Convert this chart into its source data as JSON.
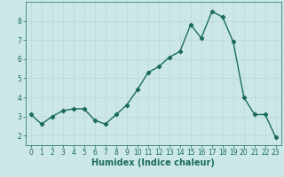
{
  "x": [
    0,
    1,
    2,
    3,
    4,
    5,
    6,
    7,
    8,
    9,
    10,
    11,
    12,
    13,
    14,
    15,
    16,
    17,
    18,
    19,
    20,
    21,
    22,
    23
  ],
  "y": [
    3.1,
    2.6,
    3.0,
    3.3,
    3.4,
    3.4,
    2.8,
    2.6,
    3.1,
    3.6,
    4.4,
    5.3,
    5.6,
    6.1,
    6.4,
    7.8,
    7.1,
    8.5,
    8.2,
    6.9,
    4.0,
    3.1,
    3.1,
    1.9
  ],
  "line_color": "#1a6b5e",
  "marker": "D",
  "markersize": 2.2,
  "linewidth": 1.0,
  "xlabel": "Humidex (Indice chaleur)",
  "bg_color": "#cce8e6",
  "grid_color": "#b8d8d6",
  "xlim": [
    -0.5,
    23.5
  ],
  "ylim": [
    1.5,
    9.0
  ],
  "yticks": [
    2,
    3,
    4,
    5,
    6,
    7,
    8
  ],
  "xticks": [
    0,
    1,
    2,
    3,
    4,
    5,
    6,
    7,
    8,
    9,
    10,
    11,
    12,
    13,
    14,
    15,
    16,
    17,
    18,
    19,
    20,
    21,
    22,
    23
  ],
  "tick_color": "#1a6b5e",
  "xlabel_fontsize": 7,
  "tick_fontsize": 5.5
}
